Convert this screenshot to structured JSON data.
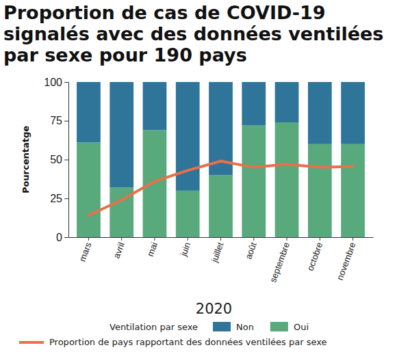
{
  "chart_data": {
    "type": "bar",
    "title": "Proportion de cas de COVID-19 signalés avec des données ventilées par sexe pour 190 pays",
    "x_label": "2020",
    "y_label": "Pourcentatge",
    "legend_title": "Ventilation par sexe",
    "categories": [
      "mars",
      "avril",
      "mai",
      "juin",
      "juillet",
      "août",
      "septembre",
      "octobre",
      "novembre"
    ],
    "series": [
      {
        "name": "Non",
        "color": "#2f7499",
        "values": [
          39,
          68,
          31,
          70,
          60,
          28,
          26,
          40,
          40
        ]
      },
      {
        "name": "Oui",
        "color": "#58a97c",
        "values": [
          61,
          32,
          69,
          30,
          40,
          72,
          74,
          60,
          60
        ]
      },
      {
        "name": "Proportion de pays rapportant des données ventilées par sexe",
        "type": "line",
        "color": "#e8704a",
        "values": [
          14,
          24,
          36,
          43,
          49,
          45,
          47,
          45,
          45.5
        ]
      }
    ],
    "stacked": true,
    "ylim": [
      0,
      100
    ],
    "yticks": [
      0,
      25,
      50,
      75,
      100
    ],
    "grid": false,
    "legend": "bottom"
  }
}
